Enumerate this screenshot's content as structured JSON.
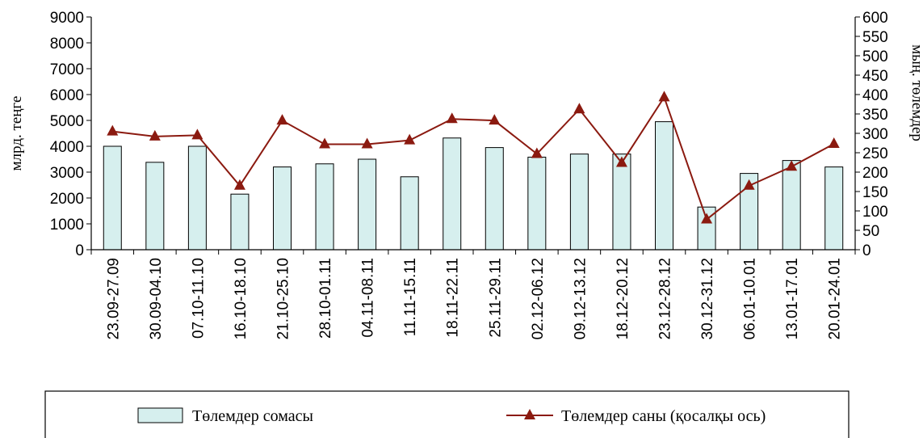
{
  "chart_data": {
    "type": "bar",
    "categories": [
      "23.09-27.09",
      "30.09-04.10",
      "07.10-11.10",
      "16.10-18.10",
      "21.10-25.10",
      "28.10-01.11",
      "04.11-08.11",
      "11.11-15.11",
      "18.11-22.11",
      "25.11-29.11",
      "02.12-06.12",
      "09.12-13.12",
      "18.12-20.12",
      "23.12-28.12",
      "30.12-31.12",
      "06.01-10.01",
      "13.01-17.01",
      "20.01-24.01"
    ],
    "series": [
      {
        "name": "Төлемдер сомасы",
        "type": "bar",
        "axis": "left",
        "values": [
          4000,
          3380,
          4000,
          2150,
          3200,
          3320,
          3500,
          2820,
          4320,
          3950,
          3580,
          3700,
          3700,
          4950,
          1650,
          2950,
          3450,
          3200
        ]
      },
      {
        "name": "Төлемдер саны (қосалқы ось)",
        "type": "line",
        "axis": "right",
        "values": [
          305,
          292,
          295,
          165,
          333,
          272,
          272,
          282,
          337,
          333,
          247,
          362,
          224,
          393,
          78,
          165,
          214,
          273
        ]
      }
    ],
    "ylabel": "млрд. теңге",
    "y2label": "мың. төлемдер",
    "ylim": [
      0,
      9000
    ],
    "y2lim": [
      0,
      600
    ],
    "yticks": [
      0,
      1000,
      2000,
      3000,
      4000,
      5000,
      6000,
      7000,
      8000,
      9000
    ],
    "y2ticks": [
      0,
      50,
      100,
      150,
      200,
      250,
      300,
      350,
      400,
      450,
      500,
      550,
      600
    ],
    "grid": false,
    "legend_position": "bottom",
    "colors": {
      "bar_fill": "#d6efee",
      "bar_stroke": "#000000",
      "line": "#8b1a10"
    }
  }
}
